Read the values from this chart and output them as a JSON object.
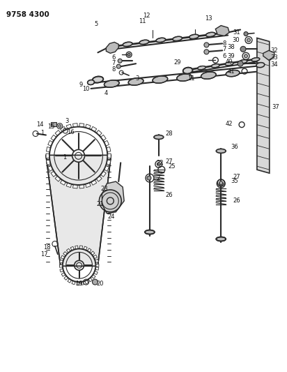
{
  "title": "9758 4300",
  "bg_color": "#ffffff",
  "lc": "#2a2a2a",
  "tc": "#111111",
  "fig_width": 4.12,
  "fig_height": 5.33,
  "dpi": 100
}
